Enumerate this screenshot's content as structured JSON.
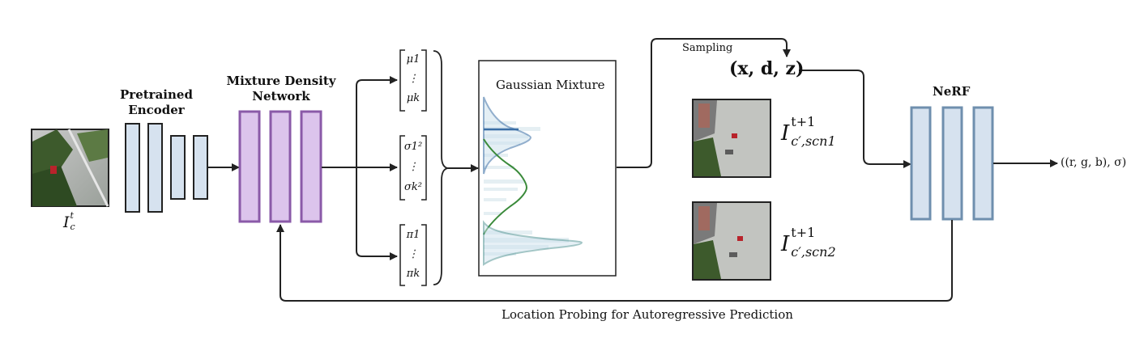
{
  "labels": {
    "pretrained_encoder_line1": "Pretrained",
    "pretrained_encoder_line2": "Encoder",
    "mdn_line1": "Mixture Density",
    "mdn_line2": "Network",
    "gaussian_mixture": "Gaussian Mixture",
    "sampling": "Sampling",
    "nerf": "NeRF",
    "location_probing": "Location Probing for Autoregressive Prediction",
    "output": "((r, g, b), σ)",
    "input_image_symbol": "I",
    "input_image_sub": "c",
    "input_image_sup": "t",
    "xdz": "(x, d, z)",
    "scn1_base": "I",
    "scn1_sup": "t+1",
    "scn1_sub": "c′,scn1",
    "scn2_base": "I",
    "scn2_sup": "t+1",
    "scn2_sub": "c′,scn2"
  },
  "vectors": {
    "mu": [
      "μ1",
      "⋮",
      "μk"
    ],
    "sigma": [
      "σ1²",
      "⋮",
      "σk²"
    ],
    "pi": [
      "π1",
      "⋮",
      "πk"
    ]
  },
  "colors": {
    "encoder_fill": "#d6e2ef",
    "mdn_fill": "#dcc4ec",
    "mdn_stroke": "#8a5aa8",
    "nerf_fill": "#d6e2ef",
    "nerf_stroke": "#6f8fae",
    "gauss_blue": "#3a6ea5",
    "gauss_green": "#3a8a3a",
    "gauss_teal": "#4a8e8e"
  }
}
